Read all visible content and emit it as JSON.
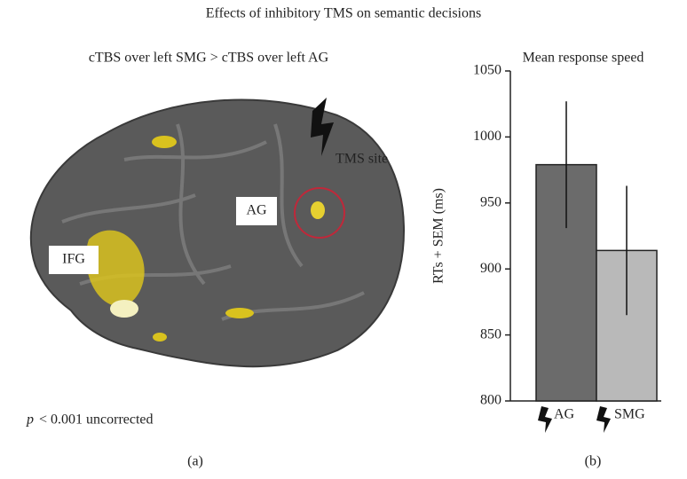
{
  "header": {
    "title": "Effects of inhibitory TMS on semantic decisions"
  },
  "panel_a": {
    "subtitle": "cTBS over left SMG > cTBS over left AG",
    "labels": [
      "IFG",
      "AG",
      "TMS site"
    ],
    "p_symbol": "p",
    "p_text": "< 0.001 uncorrected",
    "caption": "(a)"
  },
  "panel_b": {
    "caption": "(b)"
  },
  "chart_data": {
    "type": "bar",
    "title": "Mean response speed",
    "ylabel": "RTs + SEM (ms)",
    "categories": [
      "AG",
      "SMG"
    ],
    "values": [
      979,
      914
    ],
    "errors": [
      48,
      49
    ],
    "colors": [
      "#6b6b6b",
      "#b9b9b9"
    ],
    "ylim": [
      800,
      1050
    ],
    "yticks": [
      800,
      850,
      900,
      950,
      1000,
      1050
    ],
    "grid": false
  }
}
